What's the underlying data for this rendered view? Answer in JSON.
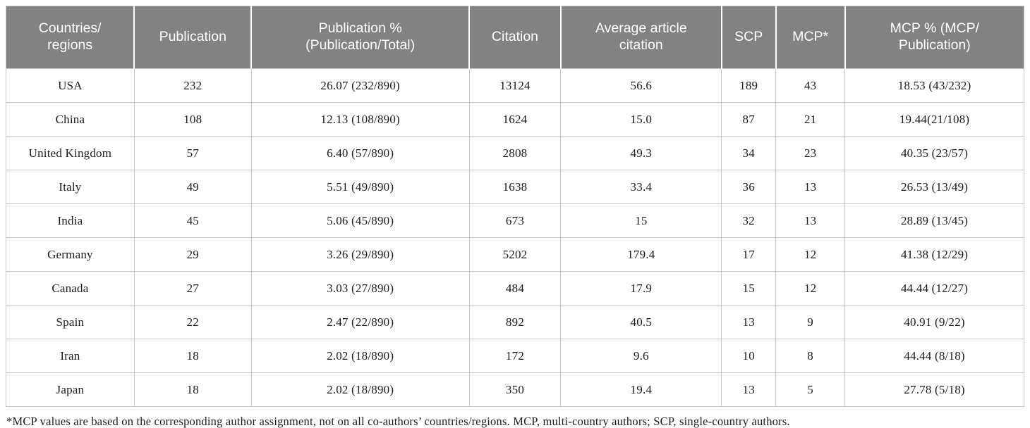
{
  "table": {
    "columns": [
      {
        "key": "countries-regions",
        "label": "Countries/\nregions",
        "width_pct": 12.6
      },
      {
        "key": "publication",
        "label": "Publication",
        "width_pct": 11.5
      },
      {
        "key": "publication-pct",
        "label": "Publication %\n(Publication/Total)",
        "width_pct": 21.4
      },
      {
        "key": "citation",
        "label": "Citation",
        "width_pct": 9.0
      },
      {
        "key": "avg-article-citation",
        "label": "Average article\ncitation",
        "width_pct": 15.79
      },
      {
        "key": "scp",
        "label": "SCP",
        "width_pct": 5.33
      },
      {
        "key": "mcp",
        "label": "MCP*",
        "width_pct": 6.79
      },
      {
        "key": "mcp-pct",
        "label": "MCP % (MCP/\nPublication)",
        "width_pct": 17.59
      }
    ],
    "rows": [
      [
        "USA",
        "232",
        "26.07 (232/890)",
        "13124",
        "56.6",
        "189",
        "43",
        "18.53 (43/232)"
      ],
      [
        "China",
        "108",
        "12.13 (108/890)",
        "1624",
        "15.0",
        "87",
        "21",
        "19.44(21/108)"
      ],
      [
        "United Kingdom",
        "57",
        "6.40 (57/890)",
        "2808",
        "49.3",
        "34",
        "23",
        "40.35 (23/57)"
      ],
      [
        "Italy",
        "49",
        "5.51 (49/890)",
        "1638",
        "33.4",
        "36",
        "13",
        "26.53 (13/49)"
      ],
      [
        "India",
        "45",
        "5.06 (45/890)",
        "673",
        "15",
        "32",
        "13",
        "28.89 (13/45)"
      ],
      [
        "Germany",
        "29",
        "3.26 (29/890)",
        "5202",
        "179.4",
        "17",
        "12",
        "41.38 (12/29)"
      ],
      [
        "Canada",
        "27",
        "3.03 (27/890)",
        "484",
        "17.9",
        "15",
        "12",
        "44.44 (12/27)"
      ],
      [
        "Spain",
        "22",
        "2.47 (22/890)",
        "892",
        "40.5",
        "13",
        "9",
        "40.91 (9/22)"
      ],
      [
        "Iran",
        "18",
        "2.02 (18/890)",
        "172",
        "9.6",
        "10",
        "8",
        "44.44 (8/18)"
      ],
      [
        "Japan",
        "18",
        "2.02 (18/890)",
        "350",
        "19.4",
        "13",
        "5",
        "27.78 (5/18)"
      ]
    ]
  },
  "footnote": "*MCP values are based on the corresponding author assignment, not on all co-authors’ countries/regions. MCP, multi-country authors; SCP, single-country authors.",
  "colors": {
    "header_bg": "#828282",
    "header_text": "#ffffff",
    "body_border": "#c9c9c9",
    "body_text": "#1c1c1c"
  }
}
